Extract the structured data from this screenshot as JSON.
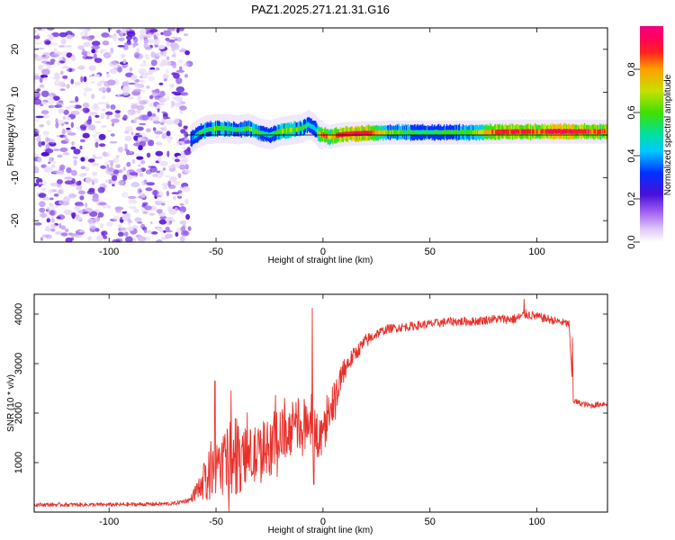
{
  "title": "PAZ1.2025.271.21.31.G16",
  "chart_data": [
    {
      "type": "heatmap",
      "name": "spectrogram",
      "xlabel": "Height of straight line (km)",
      "ylabel": "Frequency (Hz)",
      "xlim": [
        -135,
        133
      ],
      "ylim": [
        -25,
        25
      ],
      "xticks": [
        -100,
        -50,
        0,
        50,
        100
      ],
      "yticks": [
        -20,
        -10,
        0,
        10,
        20
      ],
      "xtick_labels": [
        "-100",
        "-50",
        "0",
        "50",
        "100"
      ],
      "ytick_labels": [
        "-20",
        "-10",
        "0",
        "10",
        "20"
      ],
      "noise_region_x": [
        -135,
        -64
      ],
      "signal_track": {
        "x": [
          -62,
          -58,
          -55,
          -50,
          -45,
          -40,
          -35,
          -30,
          -25,
          -20,
          -15,
          -10,
          -7,
          -4,
          -2,
          0,
          3,
          5,
          10,
          20,
          30,
          40,
          50,
          60,
          70,
          80,
          90,
          100,
          110,
          120,
          133
        ],
        "freq": [
          -1,
          0.5,
          1.2,
          1.5,
          1.5,
          1.2,
          1.6,
          0.5,
          0.0,
          0.8,
          1.2,
          1.5,
          2.5,
          1.5,
          0.2,
          0.0,
          -0.5,
          -0.2,
          0.2,
          0.4,
          0.6,
          0.6,
          0.6,
          0.6,
          0.6,
          0.7,
          0.8,
          0.8,
          0.8,
          0.8,
          0.8
        ],
        "amp": [
          0.35,
          0.5,
          0.55,
          0.6,
          0.55,
          0.5,
          0.6,
          0.55,
          0.5,
          0.6,
          0.65,
          0.55,
          0.5,
          0.45,
          0.7,
          0.85,
          0.7,
          0.8,
          0.85,
          0.9,
          0.6,
          0.55,
          0.5,
          0.55,
          0.6,
          0.8,
          0.85,
          0.8,
          0.9,
          0.85,
          0.8
        ]
      }
    },
    {
      "type": "line",
      "name": "snr",
      "xlabel": "Height of straight line (km)",
      "ylabel": "SNR (10 * v/v)",
      "xlim": [
        -135,
        133
      ],
      "ylim": [
        0,
        4400
      ],
      "xticks": [
        -100,
        -50,
        0,
        50,
        100
      ],
      "yticks": [
        1000,
        2000,
        3000,
        4000
      ],
      "xtick_labels": [
        "-100",
        "-50",
        "0",
        "50",
        "100"
      ],
      "ytick_labels": [
        "1000",
        "2000",
        "3000",
        "4000"
      ],
      "color": "#e8302a",
      "series": [
        {
          "name": "SNR",
          "x": [
            -135,
            -120,
            -100,
            -80,
            -70,
            -62,
            -58,
            -55,
            -52,
            -50,
            -45,
            -40,
            -35,
            -30,
            -25,
            -20,
            -15,
            -10,
            -8,
            -5,
            -3,
            0,
            5,
            10,
            15,
            20,
            25,
            30,
            40,
            50,
            60,
            70,
            80,
            90,
            95,
            100,
            105,
            110,
            115,
            117,
            120,
            125,
            133
          ],
          "values": [
            150,
            150,
            150,
            160,
            170,
            250,
            500,
            650,
            800,
            900,
            1000,
            1050,
            1100,
            1150,
            1300,
            1500,
            1650,
            1800,
            1900,
            1700,
            1500,
            1700,
            2300,
            2900,
            3200,
            3450,
            3600,
            3700,
            3750,
            3800,
            3850,
            3850,
            3900,
            3900,
            4000,
            3950,
            3900,
            3850,
            3800,
            2250,
            2200,
            2150,
            2200
          ],
          "noise": [
            40,
            40,
            40,
            40,
            40,
            50,
            250,
            400,
            600,
            500,
            700,
            700,
            600,
            600,
            600,
            600,
            500,
            500,
            400,
            600,
            500,
            400,
            400,
            250,
            150,
            150,
            100,
            90,
            90,
            90,
            90,
            90,
            90,
            100,
            100,
            90,
            90,
            80,
            80,
            60,
            60,
            60,
            60
          ],
          "spikes": [
            {
              "x": -50.5,
              "value": 2650
            },
            {
              "x": -43,
              "value": 2450
            },
            {
              "x": -5,
              "value": 4120
            },
            {
              "x": -4.3,
              "value": 560
            },
            {
              "x": 94,
              "value": 4300
            }
          ]
        }
      ]
    },
    {
      "type": "colorbar",
      "name": "amplitude-colorbar",
      "label": "Normalized spectral amplitude",
      "range": [
        0,
        1
      ],
      "ticks": [
        0.0,
        0.2,
        0.4,
        0.6,
        0.8
      ],
      "tick_labels": [
        "0.0",
        "0.2",
        "0.4",
        "0.6",
        "0.8"
      ],
      "colors": [
        "#ffffff",
        "#e0c8f8",
        "#a060f0",
        "#4a10d8",
        "#0030ff",
        "#00c8ff",
        "#00e0a0",
        "#40e000",
        "#c8e000",
        "#ffa000",
        "#ff2020",
        "#ff0060",
        "#f00080"
      ]
    }
  ]
}
